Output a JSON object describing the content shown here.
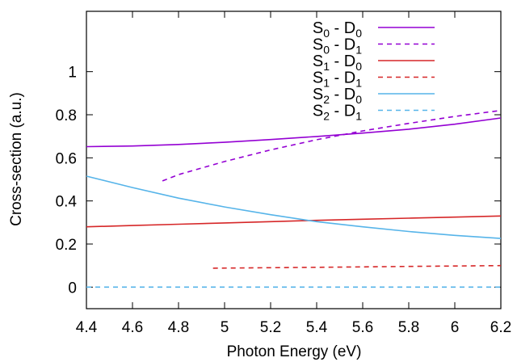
{
  "chart_data": {
    "type": "line",
    "title": "",
    "xlabel": "Photon Energy (eV)",
    "ylabel": "Cross-section (a.u.)",
    "xlim": [
      4.4,
      6.2
    ],
    "ylim": [
      -0.1,
      1.28
    ],
    "x_ticks": [
      "4.4",
      "4.6",
      "4.8",
      "5",
      "5.2",
      "5.4",
      "5.6",
      "5.8",
      "6",
      "6.2"
    ],
    "y_ticks": [
      "0",
      "0.2",
      "0.4",
      "0.6",
      "0.8",
      "1"
    ],
    "grid": false,
    "legend_position": "top-center",
    "series": [
      {
        "name": "S0 - D0",
        "state": "S",
        "state_sub": "0",
        "ion": "D",
        "ion_sub": "0",
        "color": "#9400d3",
        "dash": "solid",
        "x": [
          4.4,
          4.6,
          4.8,
          5.0,
          5.2,
          5.4,
          5.6,
          5.8,
          6.0,
          6.2
        ],
        "y": [
          0.652,
          0.655,
          0.662,
          0.672,
          0.685,
          0.699,
          0.715,
          0.733,
          0.756,
          0.785
        ]
      },
      {
        "name": "S0 - D1",
        "state": "S",
        "state_sub": "0",
        "ion": "D",
        "ion_sub": "1",
        "color": "#9400d3",
        "dash": "dashed",
        "x": [
          4.73,
          4.8,
          5.0,
          5.2,
          5.4,
          5.6,
          5.8,
          6.0,
          6.2
        ],
        "y": [
          0.493,
          0.522,
          0.583,
          0.637,
          0.684,
          0.725,
          0.76,
          0.792,
          0.82
        ]
      },
      {
        "name": "S1 - D0",
        "state": "S",
        "state_sub": "1",
        "ion": "D",
        "ion_sub": "0",
        "color": "#d62728",
        "dash": "solid",
        "x": [
          4.4,
          4.6,
          4.8,
          5.0,
          5.2,
          5.4,
          5.6,
          5.8,
          6.0,
          6.2
        ],
        "y": [
          0.28,
          0.286,
          0.292,
          0.298,
          0.304,
          0.31,
          0.315,
          0.32,
          0.325,
          0.33
        ]
      },
      {
        "name": "S1 - D1",
        "state": "S",
        "state_sub": "1",
        "ion": "D",
        "ion_sub": "1",
        "color": "#d62728",
        "dash": "dashed",
        "x": [
          4.95,
          5.2,
          5.4,
          5.6,
          5.8,
          6.0,
          6.2
        ],
        "y": [
          0.088,
          0.09,
          0.092,
          0.094,
          0.096,
          0.098,
          0.1
        ]
      },
      {
        "name": "S2 - D0",
        "state": "S",
        "state_sub": "2",
        "ion": "D",
        "ion_sub": "0",
        "color": "#56b4e9",
        "dash": "solid",
        "x": [
          4.4,
          4.6,
          4.8,
          5.0,
          5.2,
          5.4,
          5.6,
          5.8,
          6.0,
          6.2
        ],
        "y": [
          0.515,
          0.462,
          0.413,
          0.372,
          0.336,
          0.304,
          0.28,
          0.258,
          0.24,
          0.226
        ]
      },
      {
        "name": "S2 - D1",
        "state": "S",
        "state_sub": "2",
        "ion": "D",
        "ion_sub": "1",
        "color": "#56b4e9",
        "dash": "dashed",
        "x": [
          4.4,
          6.2
        ],
        "y": [
          0.0,
          0.0
        ]
      }
    ]
  }
}
